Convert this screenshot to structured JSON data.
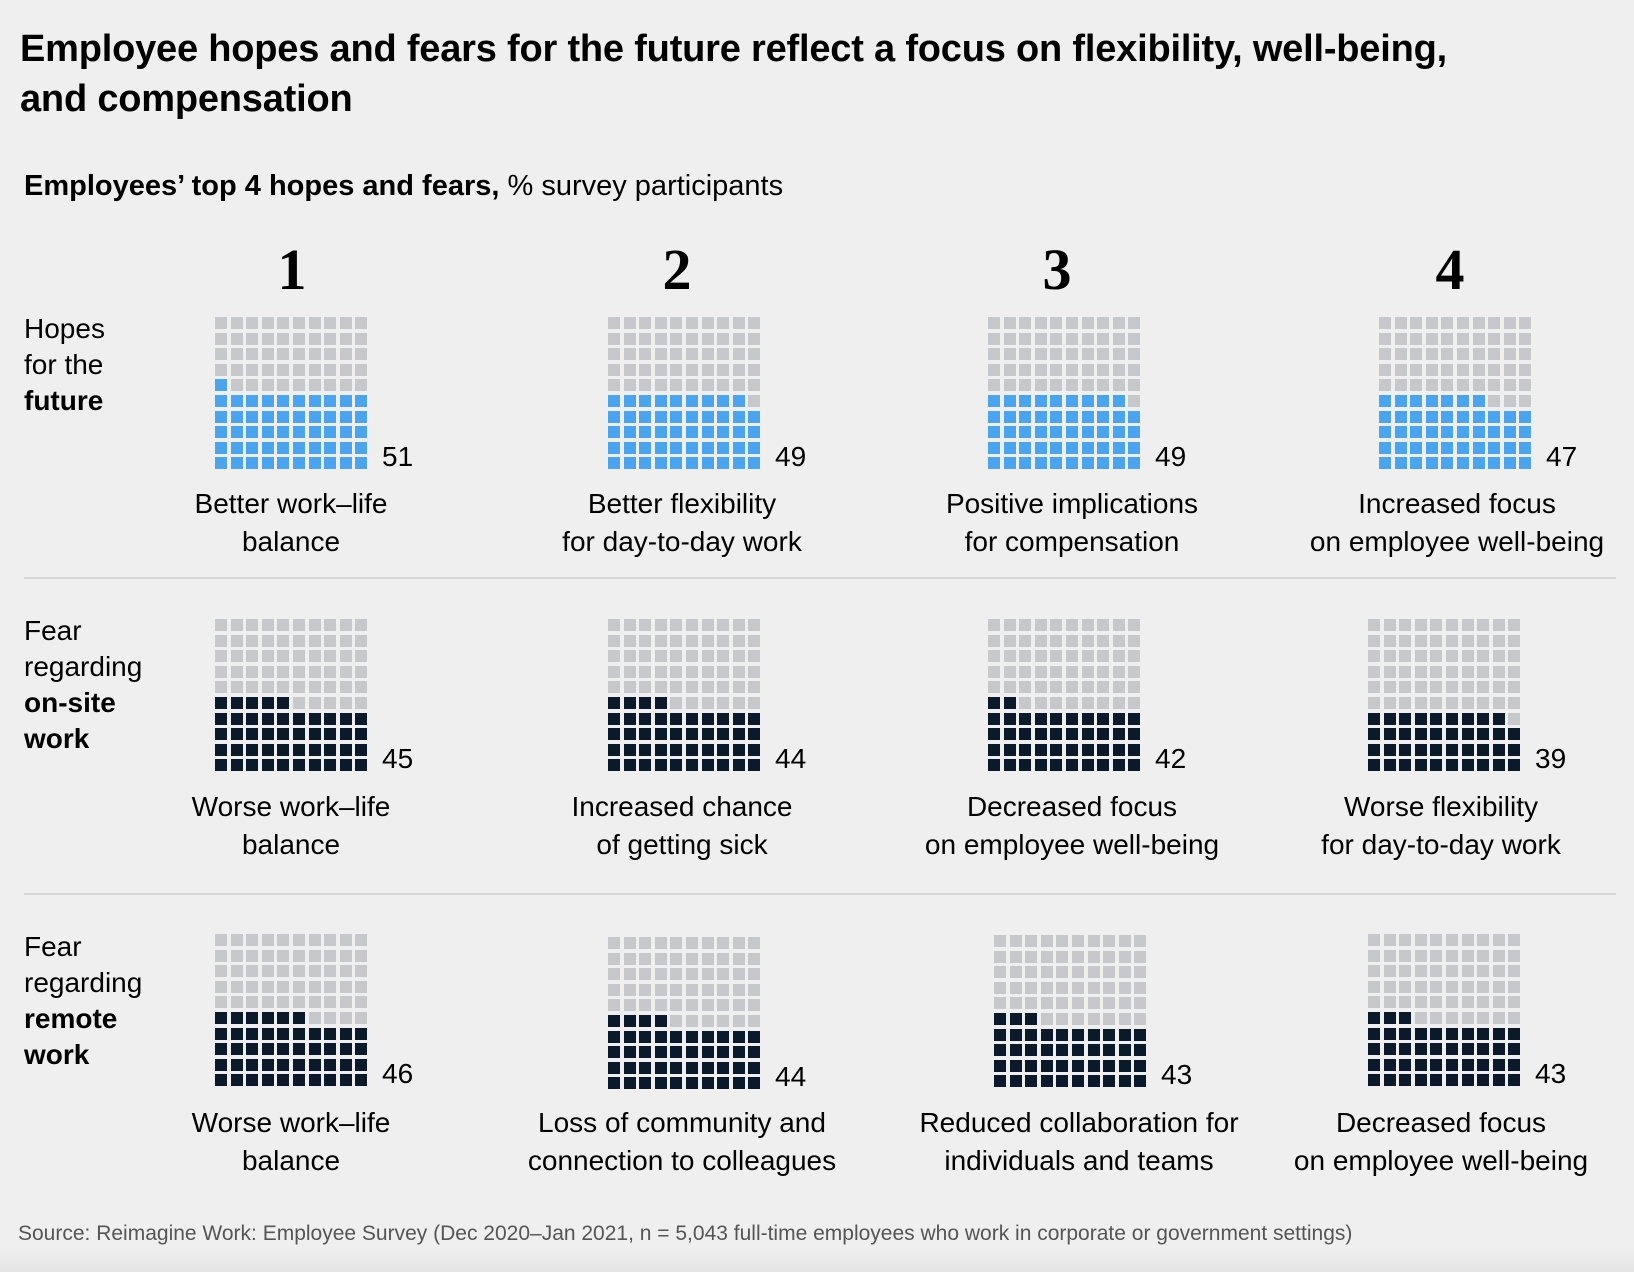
{
  "title": "Employee hopes and fears for the future reflect a focus on flexibility, well-being, and compensation",
  "subtitle": {
    "bold": "Employees’ top 4 hopes and fears,",
    "regular": " % survey participants"
  },
  "source": "Source: Reimagine Work: Employee Survey (Dec 2020–Jan 2021, n = 5,043 full-time employees who work in corporate or government settings)",
  "colors": {
    "hope": "#4aa5ee",
    "fear": "#0b1a2b",
    "empty": "#c6c8cc",
    "background": "#efefef"
  },
  "chart_data": {
    "type": "waffle",
    "title": "Employees’ top 4 hopes and fears, % survey participants",
    "grid": {
      "rows": 10,
      "cols": 10,
      "unit": "1 square = 1% of participants",
      "fill_order": "bottom-up, left-to-right"
    },
    "ranks": [
      "1",
      "2",
      "3",
      "4"
    ],
    "rows": [
      {
        "id": "hopes",
        "label_lines": [
          "Hopes",
          "for the"
        ],
        "label_bold_lines": [
          "future"
        ],
        "color_key": "hope",
        "items": [
          {
            "rank": 1,
            "value": 51,
            "label": [
              "Better work–life",
              "balance"
            ]
          },
          {
            "rank": 2,
            "value": 49,
            "label": [
              "Better flexibility",
              "for day-to-day work"
            ]
          },
          {
            "rank": 3,
            "value": 49,
            "label": [
              "Positive implications",
              "for compensation"
            ]
          },
          {
            "rank": 4,
            "value": 47,
            "label": [
              "Increased focus",
              "on employee well-being"
            ]
          }
        ]
      },
      {
        "id": "fear-onsite",
        "label_lines": [
          "Fear",
          "regarding"
        ],
        "label_bold_lines": [
          "on-site",
          "work"
        ],
        "color_key": "fear",
        "items": [
          {
            "rank": 1,
            "value": 45,
            "label": [
              "Worse work–life",
              "balance"
            ]
          },
          {
            "rank": 2,
            "value": 44,
            "label": [
              "Increased chance",
              "of getting sick"
            ]
          },
          {
            "rank": 3,
            "value": 42,
            "label": [
              "Decreased focus",
              "on employee well-being"
            ]
          },
          {
            "rank": 4,
            "value": 39,
            "label": [
              "Worse flexibility",
              "for day-to-day work"
            ]
          }
        ]
      },
      {
        "id": "fear-remote",
        "label_lines": [
          "Fear",
          "regarding"
        ],
        "label_bold_lines": [
          "remote",
          "work"
        ],
        "color_key": "fear",
        "items": [
          {
            "rank": 1,
            "value": 46,
            "label": [
              "Worse work–life",
              "balance"
            ]
          },
          {
            "rank": 2,
            "value": 44,
            "label": [
              "Loss of community and",
              "connection to colleagues"
            ]
          },
          {
            "rank": 3,
            "value": 43,
            "label": [
              "Reduced collaboration for",
              "individuals and teams"
            ]
          },
          {
            "rank": 4,
            "value": 43,
            "label": [
              "Decreased focus",
              "on employee well-being"
            ]
          }
        ]
      }
    ]
  }
}
